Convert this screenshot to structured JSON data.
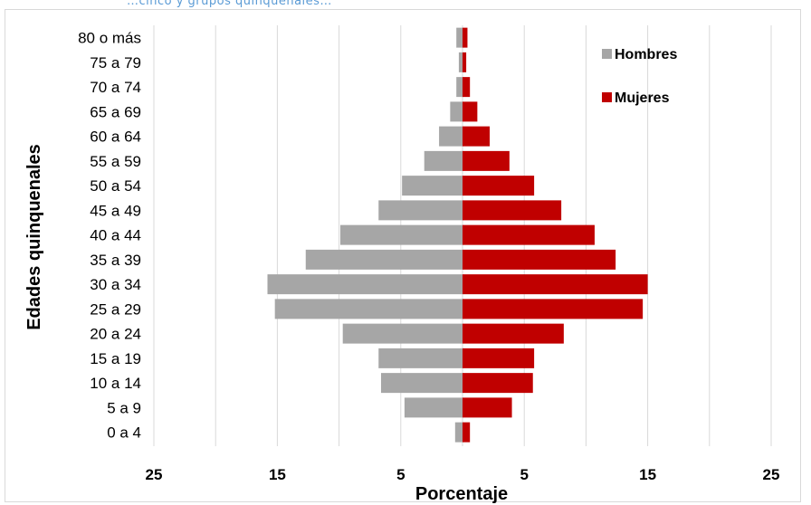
{
  "page": {
    "top_fragment": "…cinco y grupos quinquenales…"
  },
  "chart_data": {
    "type": "bar",
    "orientation": "horizontal-population-pyramid",
    "categories": [
      "0 a 4",
      "5 a 9",
      "10 a 14",
      "15 a 19",
      "20 a 24",
      "25 a 29",
      "30 a 34",
      "35 a 39",
      "40 a 44",
      "45 a 49",
      "50 a 54",
      "55 a 59",
      "60 a 64",
      "65 a 69",
      "70 a 74",
      "75 a 79",
      "80 o más"
    ],
    "series": [
      {
        "name": "Hombres",
        "color": "#a6a6a6",
        "values": [
          0.6,
          4.7,
          6.6,
          6.8,
          9.7,
          15.2,
          15.8,
          12.7,
          9.9,
          6.8,
          4.9,
          3.1,
          1.9,
          1.0,
          0.5,
          0.3,
          0.5
        ]
      },
      {
        "name": "Mujeres",
        "color": "#c00000",
        "values": [
          0.6,
          4.0,
          5.7,
          5.8,
          8.2,
          14.6,
          15.0,
          12.4,
          10.7,
          8.0,
          5.8,
          3.8,
          2.2,
          1.2,
          0.6,
          0.3,
          0.4
        ]
      }
    ],
    "xlim": [
      -25,
      25
    ],
    "xticks": [
      {
        "value": -25,
        "label": "25"
      },
      {
        "value": -15,
        "label": "15"
      },
      {
        "value": -5,
        "label": "5"
      },
      {
        "value": 5,
        "label": "5"
      },
      {
        "value": 15,
        "label": "15"
      },
      {
        "value": 25,
        "label": "25"
      }
    ],
    "xlabel": "Porcentaje",
    "ylabel": "Edades quinquenales",
    "grid": "vertical",
    "legend_position": "top-right"
  }
}
